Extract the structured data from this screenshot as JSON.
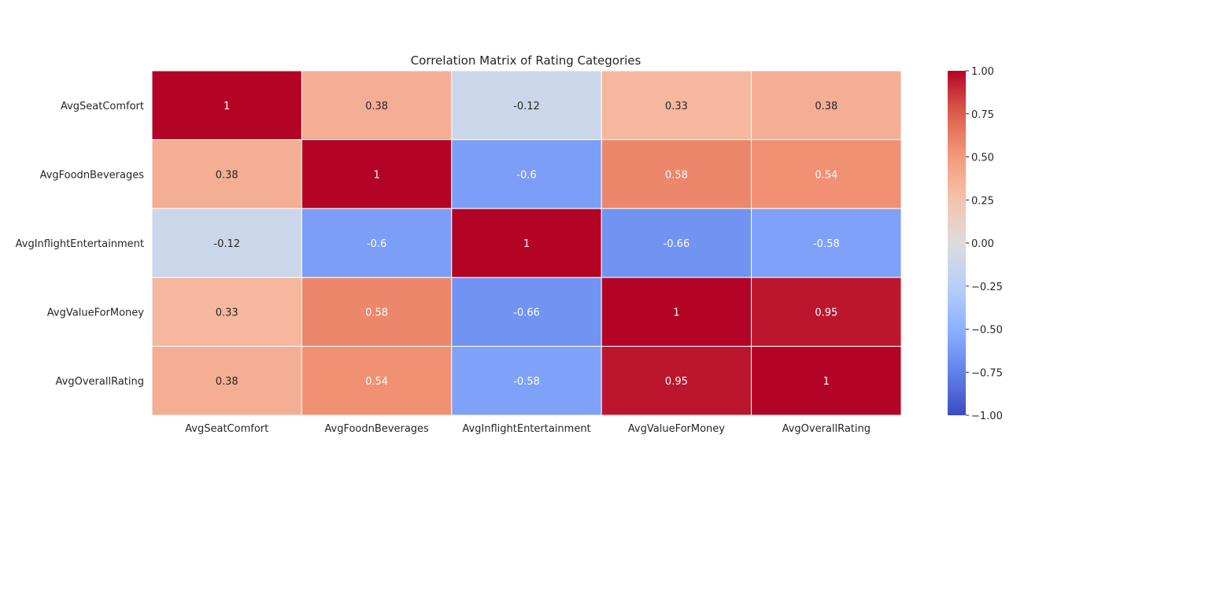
{
  "chart_data": {
    "type": "heatmap",
    "title": "Correlation Matrix of Rating Categories",
    "xlabel": "",
    "ylabel": "",
    "colormap": "coolwarm",
    "vmin": -1,
    "vmax": 1,
    "rows": [
      "AvgSeatComfort",
      "AvgFoodnBeverages",
      "AvgInflightEntertainment",
      "AvgValueForMoney",
      "AvgOverallRating"
    ],
    "columns": [
      "AvgSeatComfort",
      "AvgFoodnBeverages",
      "AvgInflightEntertainment",
      "AvgValueForMoney",
      "AvgOverallRating"
    ],
    "values": [
      [
        1,
        0.38,
        -0.12,
        0.33,
        0.38
      ],
      [
        0.38,
        1,
        -0.6,
        0.58,
        0.54
      ],
      [
        -0.12,
        -0.6,
        1,
        -0.66,
        -0.58
      ],
      [
        0.33,
        0.58,
        -0.66,
        1,
        0.95
      ],
      [
        0.38,
        0.54,
        -0.58,
        0.95,
        1
      ]
    ],
    "cell_labels": [
      [
        "1",
        "0.38",
        "-0.12",
        "0.33",
        "0.38"
      ],
      [
        "0.38",
        "1",
        "-0.6",
        "0.58",
        "0.54"
      ],
      [
        "-0.12",
        "-0.6",
        "1",
        "-0.66",
        "-0.58"
      ],
      [
        "0.33",
        "0.58",
        "-0.66",
        "1",
        "0.95"
      ],
      [
        "0.38",
        "0.54",
        "-0.58",
        "0.95",
        "1"
      ]
    ],
    "colorbar": {
      "ticks": [
        1.0,
        0.75,
        0.5,
        0.25,
        0.0,
        -0.25,
        -0.5,
        -0.75,
        -1.0
      ],
      "tick_labels": [
        "1.00",
        "0.75",
        "0.50",
        "0.25",
        "0.00",
        "−0.25",
        "−0.50",
        "−0.75",
        "−1.00"
      ]
    },
    "grid": false,
    "legend": "colorbar-right"
  }
}
